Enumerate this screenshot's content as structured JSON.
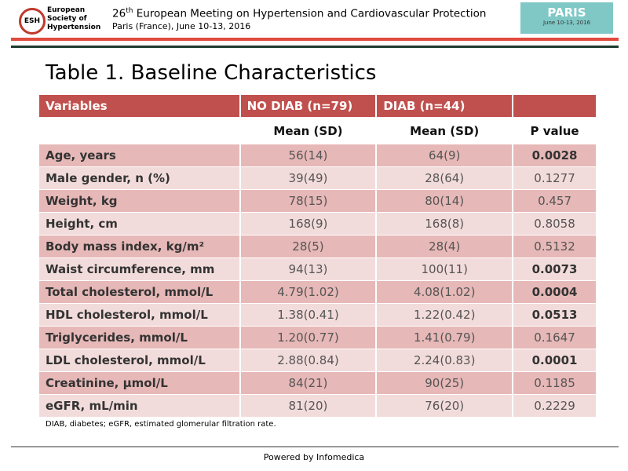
{
  "header": {
    "logo_text": "ESH",
    "society": [
      "European",
      "Society of",
      "Hypertension"
    ],
    "meeting_number": "26",
    "meeting_sup": "th",
    "meeting_title": " European Meeting on Hypertension and Cardiovascular Protection",
    "meeting_place": "Paris (France), June 10-13, 2016",
    "badge_city": "PARIS",
    "badge_dates": "June 10-13, 2016"
  },
  "table": {
    "title": "Table 1. Baseline Characteristics",
    "columns": [
      "Variables",
      "NO DIAB (n=79)",
      "DIAB (n=44)"
    ],
    "subheaders": [
      "Mean (SD)",
      "Mean (SD)",
      "P value"
    ],
    "rows": [
      {
        "variable": "Age, years",
        "no_diab": "56(14)",
        "diab": "64(9)",
        "p_value": "0.0028",
        "p_bold": true
      },
      {
        "variable": "Male gender, n (%)",
        "no_diab": "39(49)",
        "diab": "28(64)",
        "p_value": "0.1277",
        "p_bold": false
      },
      {
        "variable": "Weight, kg",
        "no_diab": "78(15)",
        "diab": "80(14)",
        "p_value": "0.457",
        "p_bold": false
      },
      {
        "variable": "Height, cm",
        "no_diab": "168(9)",
        "diab": "168(8)",
        "p_value": "0.8058",
        "p_bold": false
      },
      {
        "variable": "Body mass index, kg/m²",
        "no_diab": "28(5)",
        "diab": "28(4)",
        "p_value": "0.5132",
        "p_bold": false
      },
      {
        "variable": "Waist circumference, mm",
        "no_diab": "94(13)",
        "diab": "100(11)",
        "p_value": "0.0073",
        "p_bold": true
      },
      {
        "variable": "Total cholesterol, mmol/L",
        "no_diab": "4.79(1.02)",
        "diab": "4.08(1.02)",
        "p_value": "0.0004",
        "p_bold": true
      },
      {
        "variable": "HDL cholesterol, mmol/L",
        "no_diab": "1.38(0.41)",
        "diab": "1.22(0.42)",
        "p_value": "0.0513",
        "p_bold": true
      },
      {
        "variable": "Triglycerides, mmol/L",
        "no_diab": "1.20(0.77)",
        "diab": "1.41(0.79)",
        "p_value": "0.1647",
        "p_bold": false
      },
      {
        "variable": "LDL cholesterol, mmol/L",
        "no_diab": "2.88(0.84)",
        "diab": "2.24(0.83)",
        "p_value": "0.0001",
        "p_bold": true
      },
      {
        "variable": "Creatinine, µmol/L",
        "no_diab": "84(21)",
        "diab": "90(25)",
        "p_value": "0.1185",
        "p_bold": false
      },
      {
        "variable": "eGFR, mL/min",
        "no_diab": "81(20)",
        "diab": "76(20)",
        "p_value": "0.2229",
        "p_bold": false
      }
    ],
    "footnote": "DIAB, diabetes; eGFR, estimated glomerular filtration rate."
  },
  "footer": {
    "text": "Powered by Infomedica"
  }
}
